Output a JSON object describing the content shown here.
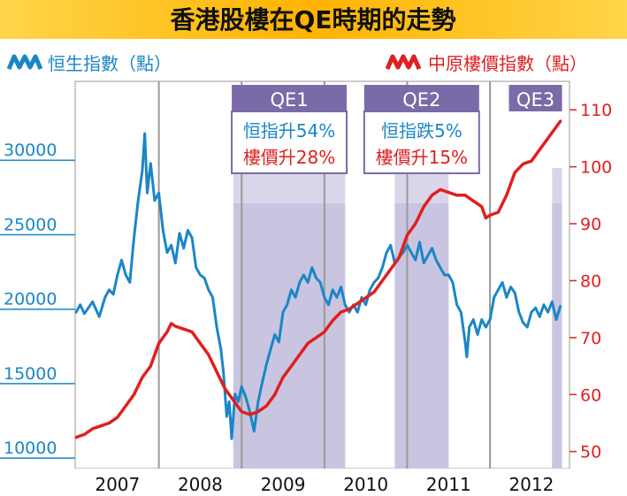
{
  "chart_data": {
    "type": "line",
    "title": "香港股樓在QE時期的走勢",
    "x_years": [
      "2007",
      "2008",
      "2009",
      "2010",
      "2011",
      "2012"
    ],
    "left_axis": {
      "ticks": [
        10000,
        15000,
        20000,
        25000,
        30000
      ],
      "range": [
        9000,
        35000
      ]
    },
    "right_axis": {
      "ticks": [
        50,
        60,
        70,
        80,
        90,
        100,
        110
      ],
      "range": [
        47,
        115
      ]
    },
    "series": [
      {
        "name": "恒生指數（點）",
        "axis": "left",
        "color": "#1a86c8",
        "points": [
          [
            2007.0,
            19500
          ],
          [
            2007.05,
            20000
          ],
          [
            2007.1,
            19400
          ],
          [
            2007.2,
            20200
          ],
          [
            2007.28,
            19200
          ],
          [
            2007.35,
            20500
          ],
          [
            2007.4,
            21000
          ],
          [
            2007.45,
            20700
          ],
          [
            2007.5,
            22000
          ],
          [
            2007.55,
            23000
          ],
          [
            2007.6,
            22000
          ],
          [
            2007.65,
            21500
          ],
          [
            2007.7,
            24500
          ],
          [
            2007.75,
            27000
          ],
          [
            2007.8,
            29000
          ],
          [
            2007.83,
            31500
          ],
          [
            2007.86,
            27500
          ],
          [
            2007.9,
            29500
          ],
          [
            2007.95,
            27000
          ],
          [
            2008.0,
            27500
          ],
          [
            2008.05,
            25000
          ],
          [
            2008.1,
            23500
          ],
          [
            2008.15,
            24000
          ],
          [
            2008.2,
            22800
          ],
          [
            2008.25,
            24800
          ],
          [
            2008.3,
            23800
          ],
          [
            2008.35,
            25000
          ],
          [
            2008.4,
            24500
          ],
          [
            2008.45,
            22500
          ],
          [
            2008.5,
            22000
          ],
          [
            2008.55,
            21800
          ],
          [
            2008.6,
            21000
          ],
          [
            2008.65,
            20500
          ],
          [
            2008.7,
            18500
          ],
          [
            2008.75,
            17000
          ],
          [
            2008.78,
            15500
          ],
          [
            2008.82,
            12500
          ],
          [
            2008.85,
            13500
          ],
          [
            2008.88,
            11000
          ],
          [
            2008.92,
            14000
          ],
          [
            2008.96,
            13500
          ],
          [
            2009.0,
            14500
          ],
          [
            2009.05,
            13800
          ],
          [
            2009.1,
            12800
          ],
          [
            2009.15,
            11500
          ],
          [
            2009.2,
            13500
          ],
          [
            2009.25,
            14800
          ],
          [
            2009.3,
            16000
          ],
          [
            2009.35,
            17000
          ],
          [
            2009.4,
            18000
          ],
          [
            2009.45,
            17500
          ],
          [
            2009.5,
            19500
          ],
          [
            2009.55,
            20000
          ],
          [
            2009.6,
            21000
          ],
          [
            2009.65,
            20500
          ],
          [
            2009.7,
            21500
          ],
          [
            2009.75,
            22000
          ],
          [
            2009.8,
            21500
          ],
          [
            2009.85,
            22500
          ],
          [
            2009.9,
            21800
          ],
          [
            2009.95,
            21500
          ],
          [
            2010.0,
            20500
          ],
          [
            2010.05,
            20000
          ],
          [
            2010.1,
            21000
          ],
          [
            2010.15,
            20500
          ],
          [
            2010.2,
            21200
          ],
          [
            2010.25,
            20000
          ],
          [
            2010.3,
            19500
          ],
          [
            2010.35,
            20000
          ],
          [
            2010.4,
            19500
          ],
          [
            2010.45,
            20500
          ],
          [
            2010.5,
            20000
          ],
          [
            2010.55,
            21000
          ],
          [
            2010.6,
            21500
          ],
          [
            2010.65,
            21800
          ],
          [
            2010.7,
            22500
          ],
          [
            2010.75,
            23500
          ],
          [
            2010.8,
            24000
          ],
          [
            2010.85,
            22800
          ],
          [
            2010.9,
            23200
          ],
          [
            2010.95,
            23500
          ],
          [
            2011.0,
            24000
          ],
          [
            2011.05,
            23500
          ],
          [
            2011.1,
            23000
          ],
          [
            2011.15,
            24200
          ],
          [
            2011.2,
            22800
          ],
          [
            2011.25,
            23300
          ],
          [
            2011.3,
            23800
          ],
          [
            2011.35,
            23000
          ],
          [
            2011.4,
            22500
          ],
          [
            2011.45,
            22000
          ],
          [
            2011.5,
            22000
          ],
          [
            2011.55,
            21500
          ],
          [
            2011.6,
            20000
          ],
          [
            2011.65,
            19500
          ],
          [
            2011.7,
            17500
          ],
          [
            2011.72,
            16500
          ],
          [
            2011.75,
            18500
          ],
          [
            2011.8,
            19000
          ],
          [
            2011.85,
            18000
          ],
          [
            2011.9,
            19000
          ],
          [
            2011.95,
            18500
          ],
          [
            2012.0,
            19000
          ],
          [
            2012.05,
            20500
          ],
          [
            2012.1,
            21000
          ],
          [
            2012.15,
            21500
          ],
          [
            2012.2,
            20500
          ],
          [
            2012.25,
            21200
          ],
          [
            2012.3,
            20800
          ],
          [
            2012.35,
            19500
          ],
          [
            2012.4,
            18800
          ],
          [
            2012.45,
            18500
          ],
          [
            2012.5,
            19500
          ],
          [
            2012.55,
            19800
          ],
          [
            2012.6,
            19200
          ],
          [
            2012.65,
            20000
          ],
          [
            2012.7,
            19500
          ],
          [
            2012.75,
            20200
          ],
          [
            2012.8,
            19000
          ],
          [
            2012.85,
            19900
          ]
        ]
      },
      {
        "name": "中原樓價指數（點）",
        "axis": "right",
        "color": "#e01f1f",
        "points": [
          [
            2007.0,
            52.5
          ],
          [
            2007.1,
            53
          ],
          [
            2007.2,
            54
          ],
          [
            2007.3,
            54.5
          ],
          [
            2007.4,
            55
          ],
          [
            2007.5,
            56
          ],
          [
            2007.6,
            58
          ],
          [
            2007.7,
            60
          ],
          [
            2007.8,
            63
          ],
          [
            2007.9,
            65
          ],
          [
            2008.0,
            69
          ],
          [
            2008.1,
            71
          ],
          [
            2008.15,
            72.5
          ],
          [
            2008.2,
            72
          ],
          [
            2008.3,
            71.5
          ],
          [
            2008.4,
            71
          ],
          [
            2008.5,
            69
          ],
          [
            2008.6,
            67
          ],
          [
            2008.7,
            64
          ],
          [
            2008.8,
            61
          ],
          [
            2008.9,
            59
          ],
          [
            2009.0,
            57
          ],
          [
            2009.1,
            56.5
          ],
          [
            2009.2,
            57
          ],
          [
            2009.3,
            58
          ],
          [
            2009.4,
            60
          ],
          [
            2009.5,
            63
          ],
          [
            2009.6,
            65
          ],
          [
            2009.7,
            67
          ],
          [
            2009.8,
            69
          ],
          [
            2009.9,
            70
          ],
          [
            2010.0,
            71
          ],
          [
            2010.1,
            73
          ],
          [
            2010.2,
            74.5
          ],
          [
            2010.3,
            75
          ],
          [
            2010.4,
            76
          ],
          [
            2010.5,
            77
          ],
          [
            2010.6,
            78
          ],
          [
            2010.7,
            80
          ],
          [
            2010.8,
            82
          ],
          [
            2010.9,
            84
          ],
          [
            2011.0,
            88
          ],
          [
            2011.1,
            90
          ],
          [
            2011.2,
            93
          ],
          [
            2011.3,
            95
          ],
          [
            2011.4,
            96
          ],
          [
            2011.5,
            95.5
          ],
          [
            2011.6,
            95
          ],
          [
            2011.7,
            95
          ],
          [
            2011.8,
            94
          ],
          [
            2011.9,
            93
          ],
          [
            2011.95,
            91
          ],
          [
            2012.0,
            91.5
          ],
          [
            2012.1,
            92
          ],
          [
            2012.2,
            95
          ],
          [
            2012.3,
            99
          ],
          [
            2012.4,
            100.5
          ],
          [
            2012.5,
            101
          ],
          [
            2012.6,
            103
          ],
          [
            2012.7,
            105
          ],
          [
            2012.8,
            107
          ],
          [
            2012.85,
            108
          ]
        ]
      }
    ],
    "qe_periods": [
      {
        "label": "QE1",
        "start": 2008.9,
        "end": 2010.25,
        "lines": [
          "恒指升54%",
          "樓價升28%"
        ]
      },
      {
        "label": "QE2",
        "start": 2010.85,
        "end": 2011.5,
        "lines": [
          "恒指跌5%",
          "樓價升15%"
        ]
      },
      {
        "label": "QE3",
        "start": 2012.75,
        "end": 2012.87,
        "lines": []
      }
    ],
    "grid": "vertical year separators"
  }
}
